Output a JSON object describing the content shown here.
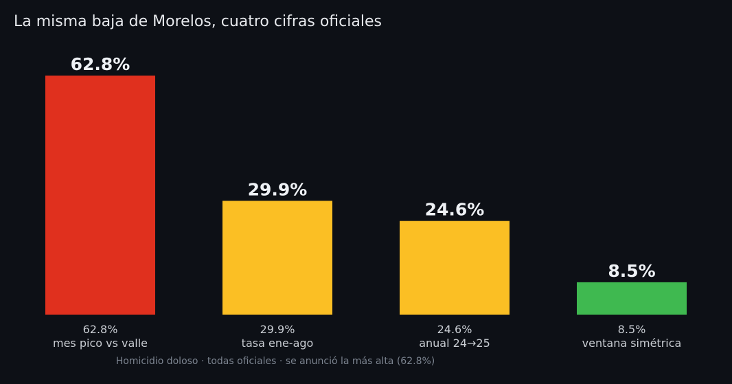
{
  "chart_data": {
    "type": "bar",
    "title": "La misma baja de Morelos, cuatro cifras oficiales",
    "categories": [
      "mes pico vs valle",
      "tasa ene-ago",
      "anual 24→25",
      "ventana simétrica"
    ],
    "values": [
      62.8,
      29.9,
      24.6,
      8.5
    ],
    "value_labels": [
      "62.8%",
      "29.9%",
      "24.6%",
      "8.5%"
    ],
    "tick_values": [
      "62.8%",
      "29.9%",
      "24.6%",
      "8.5%"
    ],
    "colors": [
      "#e0301e",
      "#fbbf24",
      "#fbbf24",
      "#3fb950"
    ],
    "ylim": [
      0,
      62.8
    ],
    "grid": false,
    "xlabel": "",
    "ylabel": "",
    "footnote": "Homicidio doloso · todas oficiales · se anunció la más alta (62.8%)"
  },
  "colors": {
    "background": "#0d1016",
    "highlight": "#e0301e",
    "neutral": "#fbbf24",
    "positive": "#3fb950"
  }
}
